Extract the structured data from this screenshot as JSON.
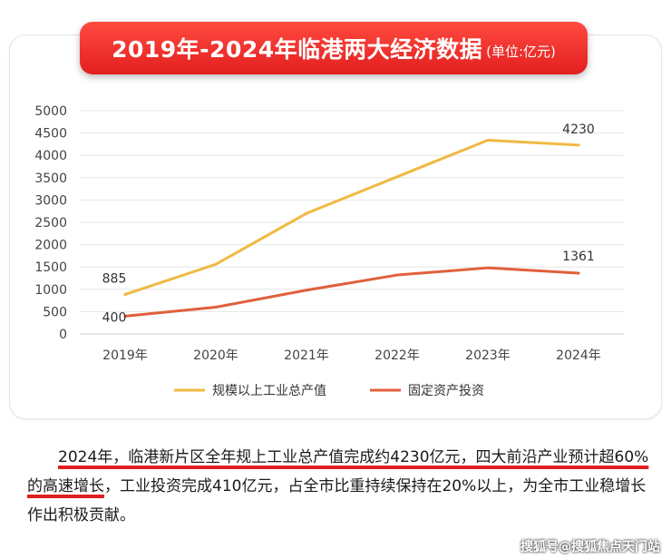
{
  "header": {
    "title": "2019年-2024年临港两大经济数据",
    "unit": "(单位:亿元)"
  },
  "chart_data": {
    "type": "line",
    "categories": [
      "2019年",
      "2020年",
      "2021年",
      "2022年",
      "2023年",
      "2024年"
    ],
    "ylim": [
      0,
      5000
    ],
    "yticks": [
      0,
      500,
      1000,
      1500,
      2000,
      2500,
      3000,
      3500,
      4000,
      4500,
      5000
    ],
    "grid": true,
    "legend_position": "bottom",
    "series": [
      {
        "name": "规模以上工业总产值",
        "color": "#f0b942",
        "values": [
          885,
          1560,
          2700,
          3520,
          4340,
          4230
        ],
        "labels": {
          "0": "885",
          "5": "4230"
        }
      },
      {
        "name": "固定资产投资",
        "color": "#e0603c",
        "values": [
          400,
          600,
          980,
          1320,
          1480,
          1361
        ],
        "labels": {
          "0": "400",
          "5": "1361"
        }
      }
    ]
  },
  "paragraph": {
    "hl1": "2024年，临港新片区全年规上工业总产值完成约4230亿元，四大前沿产业预计超60%的高速增长",
    "rest": "，工业投资完成410亿元，占全市比重持续保持在20%以上，为全市工业稳增长作出积极贡献。"
  },
  "watermark": "搜狐号@搜狐焦点天门站"
}
